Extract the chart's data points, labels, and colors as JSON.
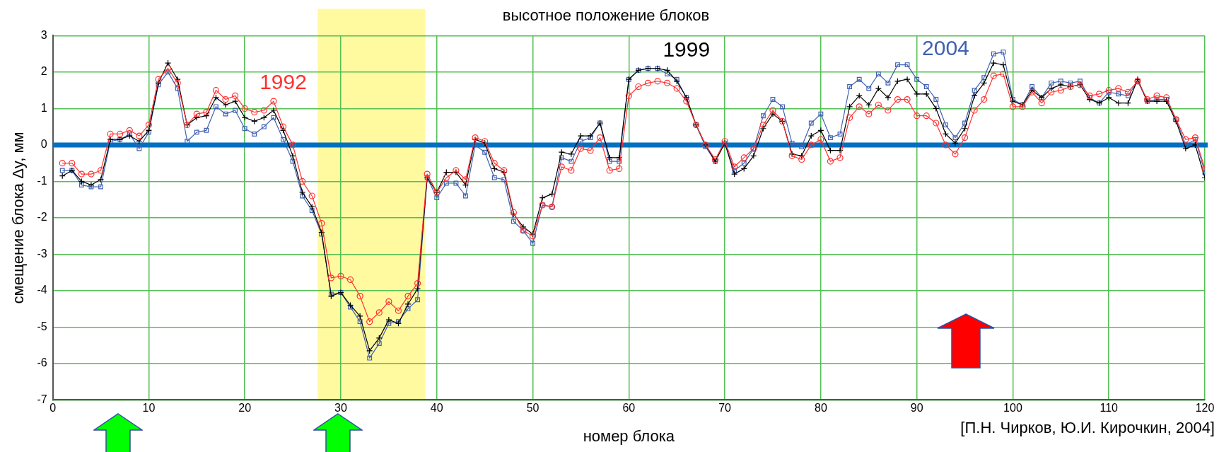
{
  "chart_data": {
    "type": "line",
    "title": "высотное положение блоков",
    "xlabel": "номер блока",
    "ylabel": "смещение блока Δy, мм",
    "x": [
      1,
      2,
      3,
      4,
      5,
      6,
      7,
      8,
      9,
      10,
      11,
      12,
      13,
      14,
      15,
      16,
      17,
      18,
      19,
      20,
      21,
      22,
      23,
      24,
      25,
      26,
      27,
      28,
      29,
      30,
      31,
      32,
      33,
      34,
      35,
      36,
      37,
      38,
      39,
      40,
      41,
      42,
      43,
      44,
      45,
      46,
      47,
      48,
      49,
      50,
      51,
      52,
      53,
      54,
      55,
      56,
      57,
      58,
      59,
      60,
      61,
      62,
      63,
      64,
      65,
      66,
      67,
      68,
      69,
      70,
      71,
      72,
      73,
      74,
      75,
      76,
      77,
      78,
      79,
      80,
      81,
      82,
      83,
      84,
      85,
      86,
      87,
      88,
      89,
      90,
      91,
      92,
      93,
      94,
      95,
      96,
      97,
      98,
      99,
      100,
      101,
      102,
      103,
      104,
      105,
      106,
      107,
      108,
      109,
      110,
      111,
      112,
      113,
      114,
      115,
      116,
      117,
      118,
      119,
      120
    ],
    "series": [
      {
        "name": "1992",
        "color": "#ff3030",
        "marker": "circle",
        "values": [
          -0.5,
          -0.5,
          -0.8,
          -0.8,
          -0.7,
          0.3,
          0.3,
          0.4,
          0.25,
          0.55,
          1.8,
          2.1,
          1.7,
          0.55,
          0.85,
          0.9,
          1.5,
          1.25,
          1.35,
          1.0,
          0.9,
          0.95,
          1.2,
          0.5,
          0.0,
          -1.0,
          -1.4,
          -2.15,
          -3.65,
          -3.6,
          -3.7,
          -4.15,
          -4.85,
          -4.6,
          -4.3,
          -4.55,
          -4.15,
          -3.8,
          -0.8,
          -1.3,
          -0.9,
          -0.7,
          -0.95,
          0.2,
          0.1,
          -0.5,
          -0.7,
          -1.85,
          -2.35,
          -2.5,
          -1.65,
          -1.7,
          -0.6,
          -0.7,
          -0.1,
          -0.15,
          0.2,
          -0.7,
          -0.65,
          1.35,
          1.6,
          1.7,
          1.75,
          1.7,
          1.55,
          1.2,
          0.55,
          0.0,
          -0.4,
          0.1,
          -0.6,
          -0.35,
          -0.1,
          0.55,
          0.95,
          0.65,
          -0.3,
          -0.4,
          0.0,
          0.15,
          -0.45,
          -0.35,
          0.75,
          1.05,
          0.85,
          1.1,
          0.95,
          1.25,
          1.25,
          0.8,
          0.8,
          0.6,
          0.0,
          -0.25,
          0.2,
          0.95,
          1.25,
          1.9,
          1.95,
          1.05,
          1.05,
          1.45,
          1.15,
          1.45,
          1.5,
          1.6,
          1.65,
          1.35,
          1.4,
          1.5,
          1.55,
          1.45,
          1.75,
          1.25,
          1.35,
          1.3,
          0.7,
          0.15,
          0.2,
          -0.65
        ]
      },
      {
        "name": "1999",
        "color": "#000000",
        "marker": "cross",
        "values": [
          -0.85,
          -0.7,
          -1.0,
          -1.1,
          -0.95,
          0.15,
          0.15,
          0.25,
          0.1,
          0.4,
          1.7,
          2.25,
          1.8,
          0.55,
          0.75,
          0.8,
          1.3,
          1.1,
          1.2,
          0.75,
          0.65,
          0.75,
          0.95,
          0.4,
          -0.3,
          -1.3,
          -1.7,
          -2.4,
          -4.15,
          -4.05,
          -4.4,
          -4.7,
          -5.65,
          -5.3,
          -4.8,
          -4.9,
          -4.37,
          -3.95,
          -0.9,
          -1.3,
          -0.75,
          -0.75,
          -1.1,
          0.15,
          0.05,
          -0.65,
          -0.75,
          -1.9,
          -2.25,
          -2.45,
          -1.45,
          -1.35,
          -0.2,
          -0.25,
          0.25,
          0.25,
          0.6,
          -0.35,
          -0.35,
          1.8,
          2.05,
          2.1,
          2.1,
          2.05,
          1.75,
          1.3,
          0.55,
          0.0,
          -0.45,
          0.05,
          -0.8,
          -0.65,
          -0.3,
          0.45,
          0.85,
          0.65,
          -0.25,
          -0.3,
          0.25,
          0.4,
          -0.15,
          -0.15,
          1.05,
          1.35,
          1.1,
          1.55,
          1.3,
          1.75,
          1.8,
          1.4,
          1.4,
          1.0,
          0.3,
          0.05,
          0.45,
          1.35,
          1.7,
          2.25,
          2.2,
          1.2,
          1.1,
          1.5,
          1.3,
          1.55,
          1.65,
          1.6,
          1.65,
          1.25,
          1.15,
          1.3,
          1.15,
          1.15,
          1.8,
          1.2,
          1.2,
          1.2,
          0.65,
          -0.1,
          0.0,
          -0.9
        ]
      },
      {
        "name": "2004",
        "color": "#4060b0",
        "marker": "square",
        "values": [
          -0.7,
          -0.7,
          -1.1,
          -1.15,
          -1.15,
          0.1,
          0.15,
          0.3,
          -0.1,
          0.35,
          1.65,
          2.0,
          1.55,
          0.1,
          0.35,
          0.4,
          1.05,
          0.85,
          0.95,
          0.45,
          0.3,
          0.5,
          0.75,
          0.15,
          -0.45,
          -1.4,
          -1.8,
          -2.45,
          -4.1,
          -4.05,
          -4.45,
          -4.85,
          -5.85,
          -5.45,
          -4.9,
          -4.85,
          -4.5,
          -4.25,
          -0.9,
          -1.45,
          -1.05,
          -1.05,
          -1.4,
          0.0,
          -0.2,
          -0.9,
          -0.95,
          -2.1,
          -2.35,
          -2.7,
          -1.65,
          -1.7,
          -0.35,
          -0.45,
          0.1,
          0.2,
          0.6,
          -0.45,
          -0.45,
          1.8,
          2.05,
          2.1,
          2.1,
          1.95,
          1.8,
          1.3,
          0.55,
          -0.05,
          -0.45,
          0.05,
          -0.7,
          -0.5,
          -0.1,
          0.8,
          1.25,
          1.05,
          0.05,
          -0.05,
          0.6,
          0.85,
          0.2,
          0.3,
          1.6,
          1.8,
          1.55,
          1.95,
          1.7,
          2.2,
          2.2,
          1.8,
          1.6,
          1.25,
          0.55,
          0.2,
          0.6,
          1.5,
          1.85,
          2.5,
          2.55,
          1.25,
          1.1,
          1.6,
          1.3,
          1.7,
          1.75,
          1.7,
          1.75,
          1.3,
          1.15,
          1.45,
          1.4,
          1.35,
          1.75,
          1.2,
          1.25,
          1.25,
          0.7,
          0.0,
          0.15,
          -0.75
        ]
      }
    ],
    "xlim": [
      0,
      120
    ],
    "xticks": [
      0,
      10,
      20,
      30,
      40,
      50,
      60,
      70,
      80,
      90,
      100,
      110,
      120
    ],
    "ylim": [
      -7,
      3
    ],
    "yticks": [
      -7,
      -6,
      -5,
      -4,
      -3,
      -2,
      -1,
      0,
      1,
      2,
      3
    ],
    "grid": true,
    "legend": false,
    "line_style": "solid",
    "ref_lines": [
      {
        "axis": "y",
        "value": 0,
        "color": "#0070c0"
      }
    ],
    "bands": [
      {
        "axis": "x",
        "from": 27.6,
        "to": 38.8,
        "color": "#fff9a0"
      }
    ],
    "annotations": [
      "[П.Н. Чирков, Ю.И. Кирочкин, 2004]"
    ]
  }
}
